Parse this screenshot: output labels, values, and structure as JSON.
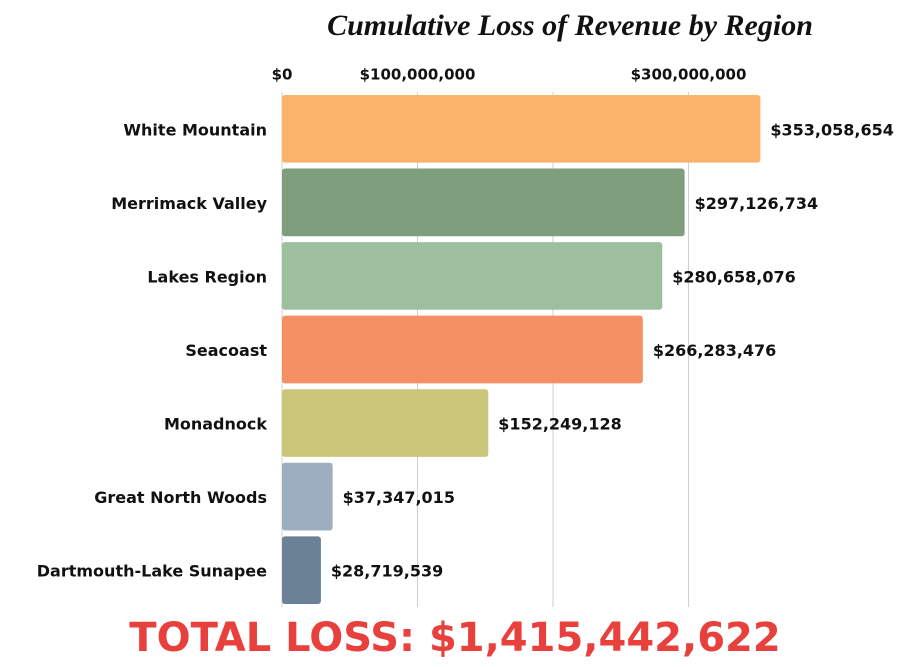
{
  "chart_data": {
    "type": "bar",
    "orientation": "horizontal",
    "title": "Cumulative Loss of Revenue by Region",
    "categories": [
      "White Mountain",
      "Merrimack Valley",
      "Lakes Region",
      "Seacoast",
      "Monadnock",
      "Great North Woods",
      "Dartmouth-Lake Sunapee"
    ],
    "values": [
      353058654,
      297126734,
      280658076,
      266283476,
      152249128,
      37347015,
      28719539
    ],
    "value_labels": [
      "$353,058,654",
      "$297,126,734",
      "$280,658,076",
      "$266,283,476",
      "$152,249,128",
      "$37,347,015",
      "$28,719,539"
    ],
    "colors": [
      "#fbb36b",
      "#7e9e7e",
      "#9dbfa0",
      "#f49063",
      "#cbc67a",
      "#9daec0",
      "#6b8196"
    ],
    "xlim": [
      0,
      400000000
    ],
    "xticks": [
      {
        "value": 0,
        "label": "$0"
      },
      {
        "value": 100000000,
        "label": "$100,000,000"
      },
      {
        "value": 300000000,
        "label": "$300,000,000"
      }
    ],
    "gridlines": [
      100000000,
      200000000,
      300000000
    ],
    "grid": true,
    "annotation": "TOTAL LOSS: $1,415,442,622"
  }
}
